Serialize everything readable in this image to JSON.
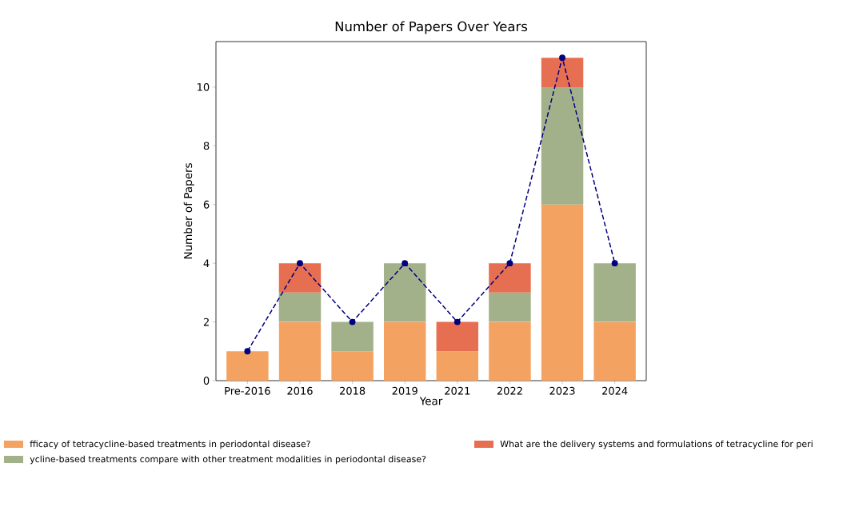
{
  "chart_data": {
    "type": "bar",
    "title": "Number of Papers Over Years",
    "xlabel": "Year",
    "ylabel": "Number of Papers",
    "categories": [
      "Pre-2016",
      "2016",
      "2018",
      "2019",
      "2021",
      "2022",
      "2023",
      "2024"
    ],
    "stacked": true,
    "series": [
      {
        "name": "fficacy of tetracycline-based treatments in periodontal disease?",
        "color": "#f4a261",
        "values": [
          1,
          2,
          1,
          2,
          1,
          2,
          6,
          2
        ]
      },
      {
        "name": "ycline-based treatments compare with other treatment modalities in periodontal disease?",
        "color": "#a3b18a",
        "values": [
          0,
          1,
          1,
          2,
          0,
          1,
          4,
          2
        ]
      },
      {
        "name": "What are the delivery systems and formulations of tetracycline for peri",
        "color": "#e76f51",
        "values": [
          0,
          1,
          0,
          0,
          1,
          1,
          1,
          0
        ]
      },
      {
        "type": "line",
        "color": "#000080",
        "values": [
          1,
          4,
          2,
          4,
          2,
          4,
          11,
          4
        ]
      }
    ],
    "marker": "circle",
    "line_style": "dashed",
    "ylim": [
      0,
      11.55
    ],
    "yticks": [
      0,
      2,
      4,
      6,
      8,
      10
    ],
    "grid": false,
    "legend": "bottom"
  }
}
